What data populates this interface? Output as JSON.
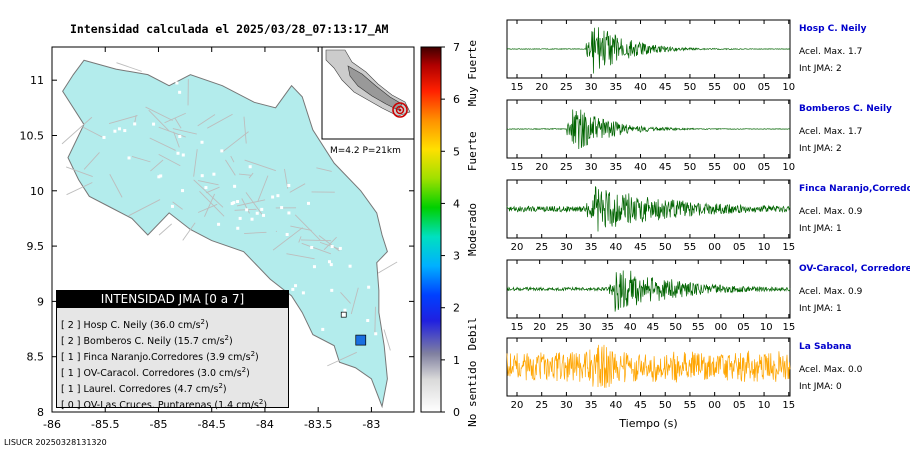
{
  "map": {
    "title": "Intensidad calculada el 2025/03/28_07:13:17_AM",
    "lon_ticks": [
      "-86",
      "-85.5",
      "-85",
      "-84.5",
      "-84",
      "-83.5",
      "-83"
    ],
    "lat_ticks": [
      "11",
      "10.5",
      "10",
      "9.5",
      "9",
      "8.5",
      "8"
    ],
    "inset_label": "M=4.2 P=21km",
    "footer_id": "LISUCR 20250328131320",
    "colors": {
      "sea": "#ffffff",
      "land": "#b3ecec",
      "roads": "#bdbdbd",
      "station": "#1a6fe0"
    }
  },
  "colorbar": {
    "ticks": [
      "0",
      "1",
      "2",
      "3",
      "4",
      "5",
      "6",
      "7"
    ],
    "labels": [
      "No sentido",
      "Debil",
      "Moderado",
      "Fuerte",
      "Muy Fuerte"
    ]
  },
  "legend": {
    "title": "INTENSIDAD JMA [0 a 7]",
    "entries": [
      {
        "level": "[ 2 ]",
        "text": "Hosp C. Neily (36.0 cm/s",
        "sup": "2",
        "close": ")"
      },
      {
        "level": "[ 2 ]",
        "text": "Bomberos C. Neily (15.7 cm/s",
        "sup": "2",
        "close": ")"
      },
      {
        "level": "[ 1 ]",
        "text": "Finca Naranjo.Corredores (3.9 cm/s",
        "sup": "2",
        "close": ")"
      },
      {
        "level": "[ 1 ]",
        "text": "OV-Caracol. Corredores (3.0 cm/s",
        "sup": "2",
        "close": ")"
      },
      {
        "level": "[ 1 ]",
        "text": "Laurel. Corredores (4.7 cm/s",
        "sup": "2",
        "close": ")"
      },
      {
        "level": "[ 0 ]",
        "text": "OV-Las Cruces. Puntarenas (1.4 cm/s",
        "sup": "2",
        "close": ")"
      }
    ]
  },
  "traces": {
    "xlabel": "Tiempo (s)",
    "stations": [
      {
        "name": "Hosp C. Neily",
        "acel": "Acel. Max. 1.7",
        "int": "Int JMA: 2",
        "color": "#006400",
        "ticks": [
          "15",
          "20",
          "25",
          "30",
          "35",
          "40",
          "45",
          "50",
          "55",
          "00",
          "05",
          "10"
        ]
      },
      {
        "name": "Bomberos C. Neily",
        "acel": "Acel. Max. 1.7",
        "int": "Int JMA: 2",
        "color": "#006400",
        "ticks": [
          "15",
          "20",
          "25",
          "30",
          "35",
          "40",
          "45",
          "50",
          "55",
          "00",
          "05",
          "10"
        ]
      },
      {
        "name": "Finca Naranjo,Corredores",
        "acel": "Acel. Max. 0.9",
        "int": "Int JMA: 1",
        "color": "#006400",
        "ticks": [
          "20",
          "25",
          "30",
          "35",
          "40",
          "45",
          "50",
          "55",
          "00",
          "05",
          "10",
          "15"
        ]
      },
      {
        "name": "OV-Caracol, Corredores",
        "acel": "Acel. Max. 0.9",
        "int": "Int JMA: 1",
        "color": "#006400",
        "ticks": [
          "15",
          "20",
          "25",
          "30",
          "35",
          "40",
          "45",
          "50",
          "55",
          "00",
          "05",
          "10",
          "15"
        ]
      },
      {
        "name": "La Sabana",
        "acel": "Acel. Max. 0.0",
        "int": "Int JMA: 0",
        "color": "#ffa500",
        "ticks": [
          "20",
          "25",
          "30",
          "35",
          "40",
          "45",
          "50",
          "55",
          "00",
          "05",
          "10",
          "15"
        ]
      }
    ]
  },
  "chart_data": [
    {
      "type": "heatmap",
      "title": "Intensidad calculada el 2025/03/28_07:13:17_AM",
      "xlabel": "",
      "ylabel": "",
      "xlim": [
        -86,
        -82.6
      ],
      "ylim": [
        8,
        11.3
      ],
      "inset": "M=4.2 P=21km",
      "colorbar_range": [
        0,
        7
      ],
      "stations_intensity": [
        {
          "name": "Hosp C. Neily",
          "jma": 2,
          "pga": 36.0
        },
        {
          "name": "Bomberos C. Neily",
          "jma": 2,
          "pga": 15.7
        },
        {
          "name": "Finca Naranjo.Corredores",
          "jma": 1,
          "pga": 3.9
        },
        {
          "name": "OV-Caracol. Corredores",
          "jma": 1,
          "pga": 3.0
        },
        {
          "name": "Laurel. Corredores",
          "jma": 1,
          "pga": 4.7
        },
        {
          "name": "OV-Las Cruces. Puntarenas",
          "jma": 0,
          "pga": 1.4
        }
      ]
    },
    {
      "type": "line",
      "xlabel": "Tiempo (s)",
      "series": [
        {
          "name": "Hosp C. Neily",
          "acel_max": 1.7,
          "int_jma": 2
        },
        {
          "name": "Bomberos C. Neily",
          "acel_max": 1.7,
          "int_jma": 2
        },
        {
          "name": "Finca Naranjo,Corredores",
          "acel_max": 0.9,
          "int_jma": 1
        },
        {
          "name": "OV-Caracol, Corredores",
          "acel_max": 0.9,
          "int_jma": 1
        },
        {
          "name": "La Sabana",
          "acel_max": 0.0,
          "int_jma": 0
        }
      ]
    }
  ]
}
